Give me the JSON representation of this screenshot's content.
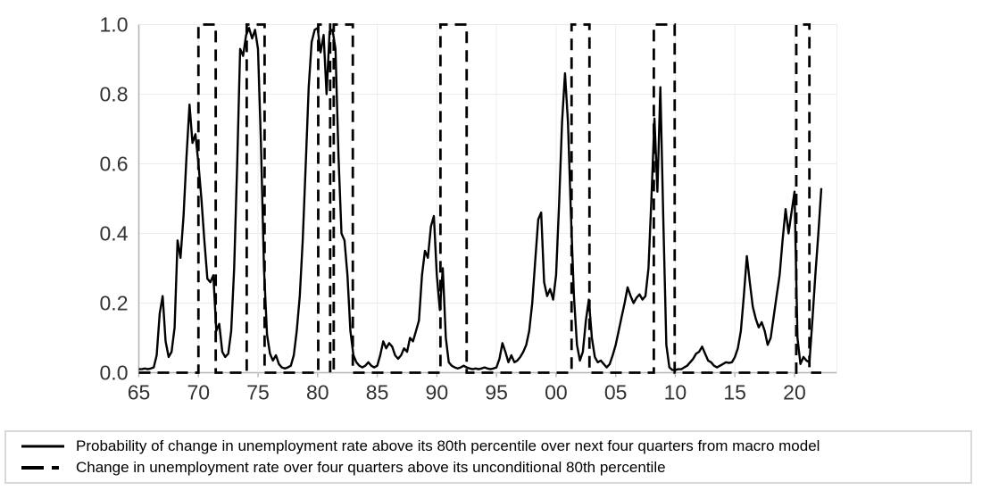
{
  "colors": {
    "line": "#000000",
    "grid": "#ececec",
    "axis": "#b5b5b5",
    "tick_label": "#333333",
    "legend_border": "#d9d9d9"
  },
  "y_axis": {
    "labels": [
      "0.0",
      "0.2",
      "0.4",
      "0.6",
      "0.8",
      "1.0"
    ]
  },
  "x_axis": {
    "labels": [
      "65",
      "70",
      "75",
      "80",
      "85",
      "90",
      "95",
      "00",
      "05",
      "10",
      "15",
      "20"
    ],
    "years": [
      1965,
      1970,
      1975,
      1980,
      1985,
      1990,
      1995,
      2000,
      2005,
      2010,
      2015,
      2020
    ]
  },
  "legend": {
    "items": [
      {
        "style": "solid",
        "label": "Probability of change in unemployment rate above its 80th percentile over next four quarters from macro model"
      },
      {
        "style": "dashed",
        "label": "Change in unemployment rate over four quarters above its unconditional 80th percentile"
      }
    ]
  },
  "chart_data": {
    "type": "line",
    "title": "",
    "xlabel": "",
    "ylabel": "",
    "xlim": [
      1965,
      2023.5
    ],
    "ylim": [
      0.0,
      1.0
    ],
    "grid": true,
    "legend_position": "bottom",
    "x_start": 1965.0,
    "x_step": 0.25,
    "series": [
      {
        "name": "Probability of change in unemployment rate above its 80th percentile over next four quarters from macro model",
        "style": "solid",
        "values": [
          0.01,
          0.01,
          0.012,
          0.01,
          0.012,
          0.015,
          0.05,
          0.17,
          0.22,
          0.09,
          0.045,
          0.06,
          0.13,
          0.38,
          0.33,
          0.45,
          0.62,
          0.77,
          0.66,
          0.685,
          0.6,
          0.5,
          0.38,
          0.27,
          0.26,
          0.28,
          0.12,
          0.14,
          0.06,
          0.045,
          0.055,
          0.12,
          0.3,
          0.6,
          0.93,
          0.91,
          0.97,
          0.99,
          0.96,
          0.985,
          0.93,
          0.65,
          0.3,
          0.11,
          0.055,
          0.035,
          0.05,
          0.025,
          0.015,
          0.012,
          0.015,
          0.02,
          0.05,
          0.12,
          0.22,
          0.38,
          0.6,
          0.82,
          0.95,
          0.985,
          0.99,
          0.92,
          0.97,
          0.8,
          0.98,
          0.985,
          0.93,
          0.62,
          0.4,
          0.38,
          0.28,
          0.12,
          0.05,
          0.03,
          0.02,
          0.015,
          0.02,
          0.03,
          0.02,
          0.015,
          0.02,
          0.05,
          0.09,
          0.07,
          0.085,
          0.075,
          0.05,
          0.04,
          0.05,
          0.07,
          0.06,
          0.1,
          0.09,
          0.12,
          0.15,
          0.28,
          0.35,
          0.33,
          0.42,
          0.45,
          0.28,
          0.18,
          0.3,
          0.1,
          0.03,
          0.02,
          0.015,
          0.012,
          0.015,
          0.02,
          0.015,
          0.012,
          0.01,
          0.012,
          0.01,
          0.012,
          0.015,
          0.012,
          0.01,
          0.012,
          0.015,
          0.04,
          0.085,
          0.06,
          0.03,
          0.05,
          0.03,
          0.035,
          0.045,
          0.06,
          0.08,
          0.12,
          0.2,
          0.32,
          0.44,
          0.46,
          0.26,
          0.22,
          0.24,
          0.21,
          0.28,
          0.48,
          0.72,
          0.86,
          0.72,
          0.45,
          0.22,
          0.08,
          0.035,
          0.06,
          0.15,
          0.21,
          0.1,
          0.045,
          0.03,
          0.035,
          0.025,
          0.015,
          0.025,
          0.05,
          0.08,
          0.12,
          0.16,
          0.2,
          0.245,
          0.22,
          0.2,
          0.215,
          0.225,
          0.21,
          0.22,
          0.3,
          0.5,
          0.73,
          0.52,
          0.82,
          0.43,
          0.08,
          0.015,
          0.008,
          0.008,
          0.01,
          0.01,
          0.015,
          0.02,
          0.03,
          0.04,
          0.055,
          0.06,
          0.075,
          0.055,
          0.035,
          0.03,
          0.02,
          0.015,
          0.02,
          0.025,
          0.03,
          0.028,
          0.03,
          0.045,
          0.07,
          0.12,
          0.22,
          0.335,
          0.26,
          0.19,
          0.155,
          0.13,
          0.145,
          0.12,
          0.08,
          0.1,
          0.16,
          0.22,
          0.28,
          0.38,
          0.47,
          0.4,
          0.46,
          0.52,
          0.1,
          0.025,
          0.045,
          0.035,
          0.03,
          0.15,
          0.28,
          0.4,
          0.53
        ]
      },
      {
        "name": "Change in unemployment rate over four quarters above its unconditional 80th percentile",
        "style": "dashed",
        "low": 0.0,
        "high": 1.0,
        "pulses": [
          [
            1970.0,
            1971.45
          ],
          [
            1974.05,
            1975.55
          ],
          [
            1980.05,
            1981.05
          ],
          [
            1981.35,
            1982.95
          ],
          [
            1990.3,
            1992.5
          ],
          [
            2001.3,
            2002.8
          ],
          [
            2008.2,
            2009.95
          ],
          [
            2020.15,
            2021.25
          ]
        ]
      }
    ]
  }
}
